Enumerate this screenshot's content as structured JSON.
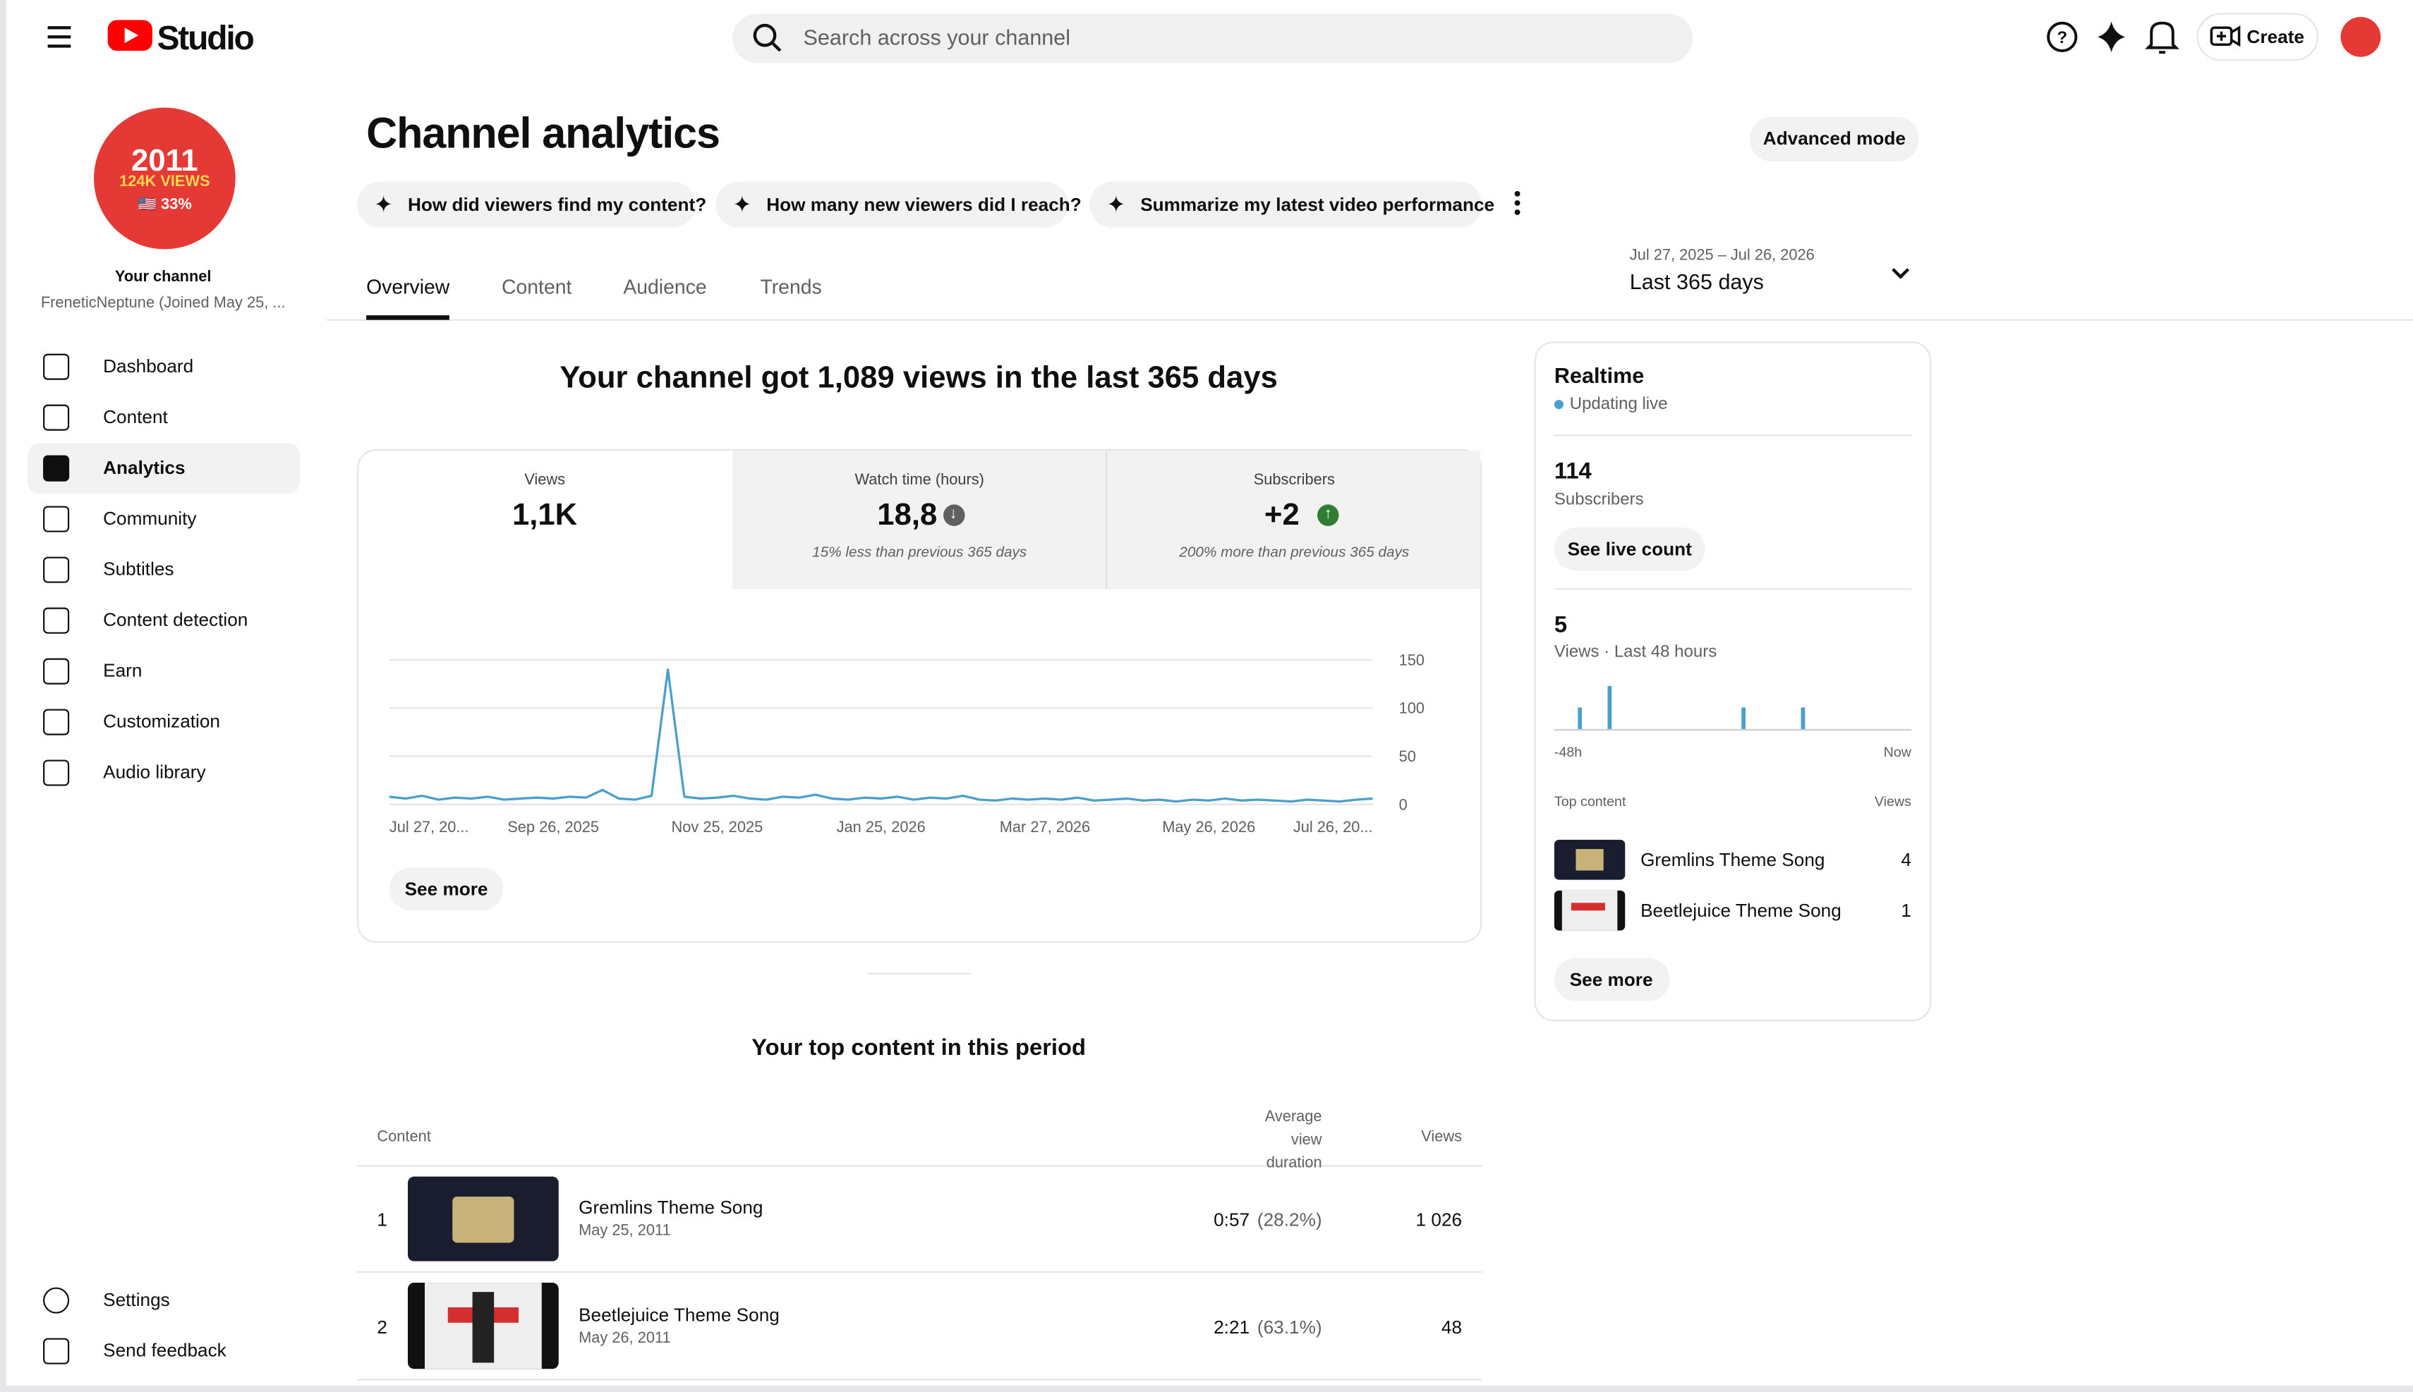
{
  "header": {
    "logo": "Studio",
    "search_placeholder": "Search across your channel",
    "create": "Create"
  },
  "sidebar": {
    "avatar": {
      "line1": "2011",
      "line2": "124K VIEWS",
      "line3": "🇺🇸 33%"
    },
    "channel_label": "Your channel",
    "channel_name": "FreneticNeptune (Joined May 25, ...",
    "nav": [
      "Dashboard",
      "Content",
      "Analytics",
      "Community",
      "Subtitles",
      "Content detection",
      "Earn",
      "Customization",
      "Audio library"
    ],
    "bottom": [
      "Settings",
      "Send feedback"
    ]
  },
  "page": {
    "title": "Channel analytics",
    "advanced_mode": "Advanced mode",
    "prompts": [
      "How did viewers find my content?",
      "How many new viewers did I reach?",
      "Summarize my latest video performance"
    ],
    "tabs": [
      "Overview",
      "Content",
      "Audience",
      "Trends"
    ],
    "date_range": "Jul 27, 2025 – Jul 26, 2026",
    "period": "Last 365 days",
    "headline": "Your channel got 1,089 views in the last 365 days",
    "see_more": "See more"
  },
  "metrics": [
    {
      "label": "Views",
      "value": "1,1K"
    },
    {
      "label": "Watch time (hours)",
      "value": "18,8",
      "trend": "down",
      "note": "15% less than previous 365 days"
    },
    {
      "label": "Subscribers",
      "value": "+2",
      "trend": "up",
      "note": "200% more than previous 365 days"
    }
  ],
  "chart_data": [
    {
      "type": "line",
      "color": "#4a9fcc",
      "grid": true,
      "categories": [
        "Jul 27, 20...",
        null,
        null,
        null,
        null,
        null,
        null,
        null,
        null,
        null,
        "Sep 26, 2025",
        null,
        null,
        null,
        null,
        null,
        null,
        null,
        null,
        null,
        "Nov 25, 2025",
        null,
        null,
        null,
        null,
        null,
        null,
        null,
        null,
        null,
        "Jan 25, 2026",
        null,
        null,
        null,
        null,
        null,
        null,
        null,
        null,
        null,
        "Mar 27, 2026",
        null,
        null,
        null,
        null,
        null,
        null,
        null,
        null,
        null,
        "May 26, 2026",
        null,
        null,
        null,
        null,
        null,
        null,
        null,
        null,
        null,
        "Jul 26, 20..."
      ],
      "values": [
        8,
        6,
        9,
        5,
        7,
        6,
        8,
        5,
        6,
        7,
        6,
        8,
        7,
        15,
        6,
        5,
        9,
        140,
        8,
        6,
        7,
        9,
        6,
        5,
        8,
        7,
        10,
        6,
        5,
        7,
        6,
        8,
        5,
        7,
        6,
        9,
        5,
        4,
        6,
        5,
        6,
        5,
        7,
        4,
        5,
        6,
        4,
        5,
        3,
        5,
        4,
        6,
        4,
        5,
        4,
        3,
        5,
        4,
        3,
        5,
        6
      ],
      "ylim": [
        0,
        150
      ],
      "yticks": [
        0,
        50,
        100,
        150
      ]
    },
    {
      "type": "bar",
      "color": "#4a9fcc",
      "categories": [
        "-48h",
        null,
        null,
        null,
        null,
        null,
        null,
        null,
        null,
        null,
        null,
        null,
        null,
        null,
        null,
        null,
        null,
        null,
        null,
        null,
        null,
        null,
        null,
        null,
        null,
        null,
        null,
        null,
        null,
        null,
        null,
        null,
        null,
        null,
        null,
        null,
        null,
        null,
        null,
        null,
        null,
        null,
        null,
        null,
        null,
        null,
        null,
        "Now"
      ],
      "values": [
        0,
        0,
        0,
        1,
        0,
        0,
        0,
        2,
        0,
        0,
        0,
        0,
        0,
        0,
        0,
        0,
        0,
        0,
        0,
        0,
        0,
        0,
        0,
        0,
        0,
        1,
        0,
        0,
        0,
        0,
        0,
        0,
        0,
        1,
        0,
        0,
        0,
        0,
        0,
        0,
        0,
        0,
        0,
        0,
        0,
        0,
        0,
        0
      ]
    }
  ],
  "top_content": {
    "title": "Your top content in this period",
    "columns": [
      "Content",
      "Average view duration",
      "Views"
    ],
    "rows": [
      {
        "rank": 1,
        "title": "Gremlins Theme Song",
        "date": "May 25, 2011",
        "duration": "0:57",
        "percent": "(28.2%)",
        "views": "1 026"
      },
      {
        "rank": 2,
        "title": "Beetlejuice Theme Song",
        "date": "May 26, 2011",
        "duration": "2:21",
        "percent": "(63.1%)",
        "views": "48"
      }
    ]
  },
  "realtime": {
    "title": "Realtime",
    "status": "Updating live",
    "subscribers": 114,
    "subscribers_label": "Subscribers",
    "live_count": "See live count",
    "views": 5,
    "views_label": "Views · Last 48 hours",
    "top_label": "Top content",
    "views_col": "Views",
    "items": [
      {
        "title": "Gremlins Theme Song",
        "views": 4
      },
      {
        "title": "Beetlejuice Theme Song",
        "views": 1
      }
    ],
    "see_more": "See more"
  }
}
